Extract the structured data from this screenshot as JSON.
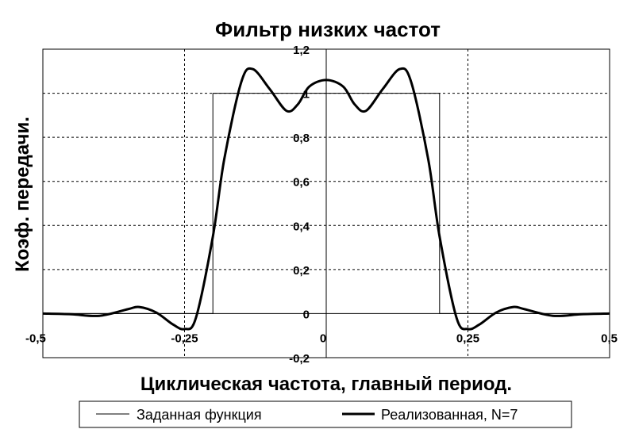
{
  "chart_data": {
    "type": "line",
    "title": "Фильтр низких частот",
    "xlabel": "Циклическая частота, главный период.",
    "ylabel": "Коэф. передачи.",
    "xlim": [
      -0.5,
      0.5
    ],
    "ylim": [
      -0.2,
      1.2
    ],
    "xticks": [
      -0.5,
      -0.25,
      0,
      0.25,
      0.5
    ],
    "xtick_labels": [
      "-0,5",
      "-0,25",
      "0",
      "0,25",
      "0,5"
    ],
    "yticks": [
      -0.2,
      0,
      0.2,
      0.4,
      0.6,
      0.8,
      1,
      1.2
    ],
    "ytick_labels": [
      "-0,2",
      "0",
      "0,2",
      "0,4",
      "0,6",
      "0,8",
      "1",
      "1,2"
    ],
    "grid": true,
    "legend_position": "bottom",
    "series": [
      {
        "name": "Заданная функция",
        "style": "thin",
        "x": [
          -0.5,
          -0.2,
          -0.2,
          0.2,
          0.2,
          0.5
        ],
        "y": [
          0,
          0,
          1,
          1,
          0,
          0
        ]
      },
      {
        "name": "Реализованная, N=7",
        "style": "thick",
        "x": [
          -0.5,
          -0.45,
          -0.4,
          -0.35,
          -0.33,
          -0.3,
          -0.27,
          -0.25,
          -0.23,
          -0.2,
          -0.18,
          -0.15,
          -0.13,
          -0.1,
          -0.07,
          -0.05,
          -0.03,
          0,
          0.03,
          0.05,
          0.07,
          0.1,
          0.13,
          0.15,
          0.18,
          0.2,
          0.23,
          0.25,
          0.27,
          0.3,
          0.33,
          0.35,
          0.4,
          0.45,
          0.5
        ],
        "y": [
          0,
          -0.003,
          -0.01,
          0.02,
          0.03,
          0.005,
          -0.05,
          -0.07,
          -0.02,
          0.35,
          0.7,
          1.05,
          1.11,
          1.02,
          0.92,
          0.95,
          1.03,
          1.06,
          1.03,
          0.95,
          0.92,
          1.02,
          1.11,
          1.05,
          0.7,
          0.35,
          -0.02,
          -0.07,
          -0.05,
          0.005,
          0.03,
          0.02,
          -0.01,
          -0.003,
          0
        ]
      }
    ]
  }
}
